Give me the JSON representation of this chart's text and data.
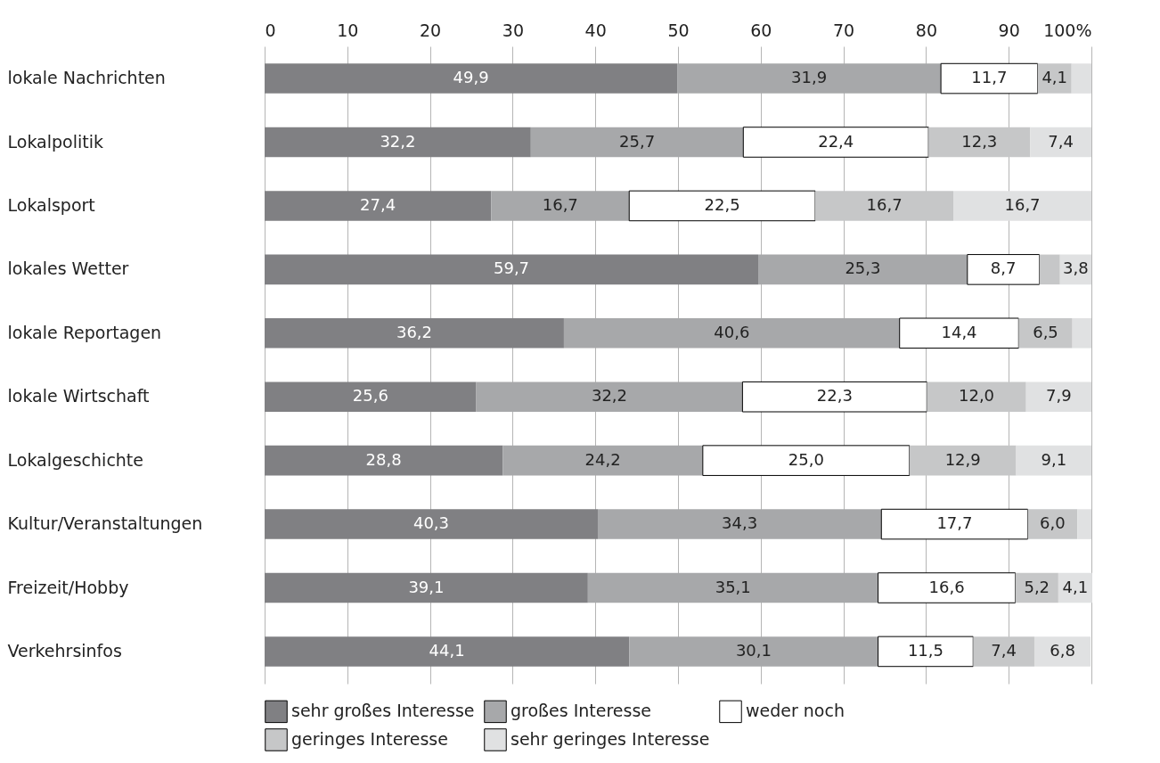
{
  "chart_data": {
    "type": "bar",
    "orientation": "horizontal",
    "stacked": true,
    "grid": "x",
    "legend": "bottom",
    "categories": [
      "lokale Nachrichten",
      "Lokalpolitik",
      "Lokalsport",
      "lokales Wetter",
      "lokale Reportagen",
      "lokale Wirtschaft",
      "Lokalgeschichte",
      "Kultur/Veranstaltungen",
      "Freizeit/Hobby",
      "Verkehrsinfos"
    ],
    "xlim": [
      0,
      100
    ],
    "xticks": [
      0,
      10,
      20,
      30,
      40,
      50,
      60,
      70,
      80,
      90,
      {
        "value": 100,
        "label": "100%"
      }
    ],
    "series": [
      {
        "name": "sehr großes Interesse",
        "color": "#808083",
        "values": [
          49.9,
          32.2,
          27.4,
          59.7,
          36.2,
          25.6,
          28.8,
          40.3,
          39.1,
          44.1
        ],
        "value_labels": [
          "49,9",
          "32,2",
          "27,4",
          "59,7",
          "36,2",
          "25,6",
          "28,8",
          "40,3",
          "39,1",
          "44,1"
        ]
      },
      {
        "name": "großes Interesse",
        "color": "#a7a8aa",
        "values": [
          31.9,
          25.7,
          16.7,
          25.3,
          40.6,
          32.2,
          24.2,
          34.3,
          35.1,
          30.1
        ],
        "value_labels": [
          "31,9",
          "25,7",
          "16,7",
          "25,3",
          "40,6",
          "32,2",
          "24,2",
          "34,3",
          "35,1",
          "30,1"
        ]
      },
      {
        "name": "weder noch",
        "color": "#ffffff",
        "values": [
          11.7,
          22.4,
          22.5,
          8.7,
          14.4,
          22.3,
          25.0,
          17.7,
          16.6,
          11.5
        ],
        "value_labels": [
          "11,7",
          "22,4",
          "22,5",
          "8,7",
          "14,4",
          "22,3",
          "25,0",
          "17,7",
          "16,6",
          "11,5"
        ]
      },
      {
        "name": "geringes Interesse",
        "color": "#c6c7c8",
        "values": [
          4.1,
          12.3,
          16.7,
          2.5,
          6.5,
          12.0,
          12.9,
          6.0,
          5.2,
          7.4
        ],
        "value_labels": [
          "4,1",
          "12,3",
          "16,7",
          null,
          "6,5",
          "12,0",
          "12,9",
          "6,0",
          "5,2",
          "7,4"
        ]
      },
      {
        "name": "sehr geringes Interesse",
        "color": "#e0e1e2",
        "values": [
          2.4,
          7.4,
          16.7,
          3.8,
          2.3,
          7.9,
          9.1,
          1.7,
          4.1,
          6.8
        ],
        "value_labels": [
          null,
          "7,4",
          "16,7",
          "3,8",
          null,
          "7,9",
          "9,1",
          null,
          "4,1",
          "6,8"
        ]
      }
    ]
  }
}
